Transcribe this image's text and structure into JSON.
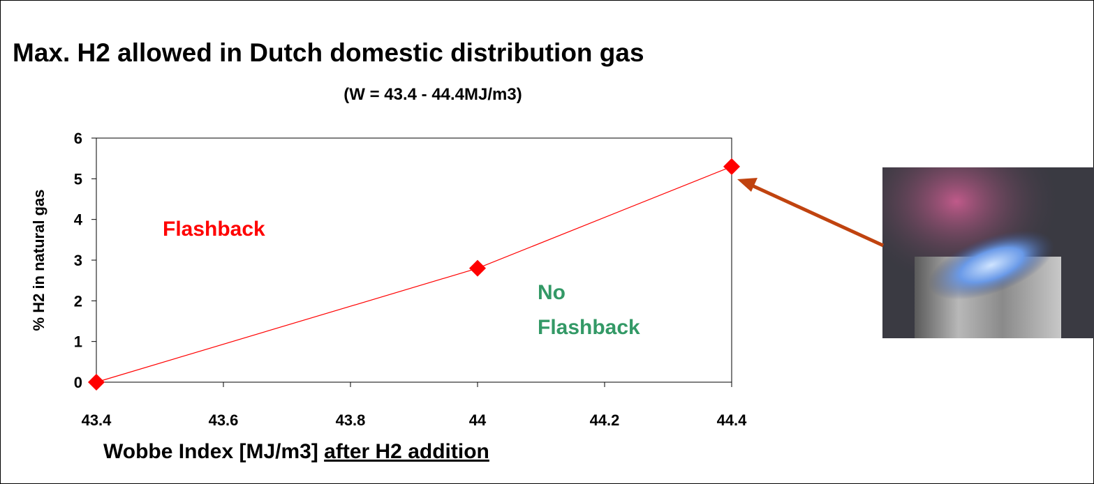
{
  "chart_data": {
    "type": "line",
    "title": "Max. H2 allowed in Dutch domestic distribution gas",
    "subtitle": "(W = 43.4 - 44.4MJ/m3)",
    "ylabel": "% H2 in natural gas",
    "xlabel": "Wobbe Index [MJ/m3]",
    "xlabel_underlined": "after H2 addition",
    "x": [
      43.4,
      44,
      44.4
    ],
    "values": [
      0,
      2.8,
      5.3
    ],
    "color": "#ff0000",
    "xlim": [
      43.4,
      44.4
    ],
    "xticks": [
      43.4,
      43.6,
      43.8,
      44,
      44.2,
      44.4
    ],
    "ylim": [
      0,
      6
    ],
    "yticks": [
      0,
      1,
      2,
      3,
      4,
      5,
      6
    ],
    "grid": false,
    "annotations": [
      {
        "lines": [
          "Flashback"
        ],
        "color": "#ff0000"
      },
      {
        "lines": [
          "No",
          "Flashback"
        ],
        "color": "#339966"
      }
    ]
  }
}
